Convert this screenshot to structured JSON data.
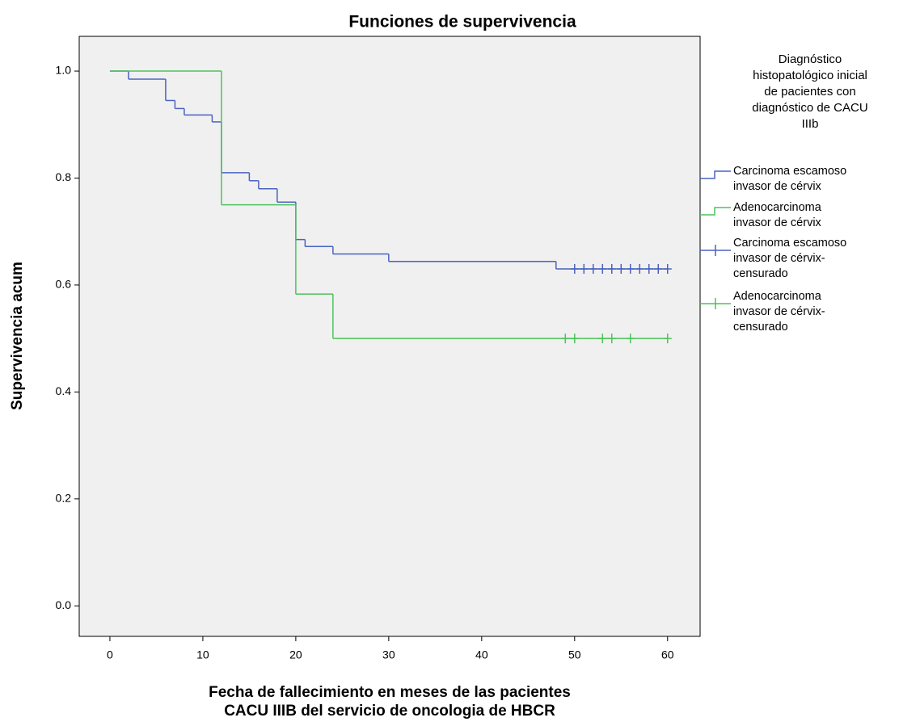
{
  "chart_data": {
    "type": "step",
    "title": "Funciones de supervivencia",
    "x_label": [
      "Fecha de fallecimiento en meses de las pacientes",
      "CACU IIIB del servicio de oncologia de HBCR"
    ],
    "y_label": "Supervivencia acum",
    "legend_title": [
      "Diagnóstico",
      "histopatológico inicial",
      "de pacientes con",
      "diagnóstico de CACU",
      "IIIb"
    ],
    "legend": "right",
    "xlim": [
      -3.3,
      63.5
    ],
    "ylim": [
      -0.057,
      1.065
    ],
    "xticks": [
      0,
      10,
      20,
      30,
      40,
      50,
      60
    ],
    "yticks": [
      {
        "value": 0,
        "label": "0.0"
      },
      0.2,
      0.4,
      0.6,
      0.8,
      {
        "value": 1,
        "label": "1.0"
      }
    ],
    "series": [
      {
        "name": "Carcinoma escamoso invasor de cérvix",
        "color": "#4a62c0",
        "marker": "step",
        "x": [
          0,
          2,
          6,
          7,
          8,
          11,
          12,
          15,
          16,
          18,
          20,
          21,
          24,
          30,
          48,
          60
        ],
        "values": [
          1,
          0.985,
          0.945,
          0.93,
          0.918,
          0.905,
          0.81,
          0.795,
          0.78,
          0.755,
          0.685,
          0.672,
          0.658,
          0.644,
          0.63,
          0.63
        ]
      },
      {
        "name": "Adenocarcinoma invasor de cérvix",
        "color": "#4cc35a",
        "marker": "step",
        "x": [
          0,
          12,
          20,
          24,
          60
        ],
        "values": [
          1,
          0.75,
          0.583,
          0.5,
          0.5
        ]
      },
      {
        "name": "Carcinoma escamoso invasor de cérvix-censurado",
        "color": "#4a62c0",
        "marker": "plus",
        "x": [
          50,
          51,
          52,
          53,
          54,
          55,
          56,
          57,
          58,
          59,
          60
        ],
        "values": [
          0.63,
          0.63,
          0.63,
          0.63,
          0.63,
          0.63,
          0.63,
          0.63,
          0.63,
          0.63,
          0.63
        ]
      },
      {
        "name": "Adenocarcinoma invasor de cérvix-censurado",
        "color": "#4cc35a",
        "marker": "plus",
        "x": [
          49,
          50,
          53,
          54,
          56,
          60
        ],
        "values": [
          0.5,
          0.5,
          0.5,
          0.5,
          0.5,
          0.5
        ]
      }
    ]
  }
}
